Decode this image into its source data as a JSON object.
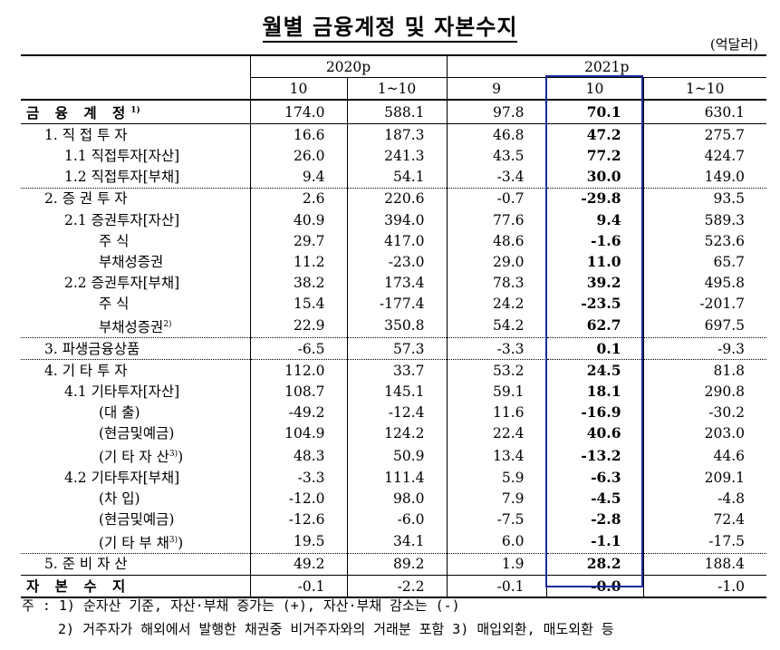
{
  "title": "월별 금융계정 및 자본수지",
  "unit": "(억달러)",
  "columns": {
    "year2020": "2020p",
    "year2021": "2021p",
    "c1": "10",
    "c2": "1~10",
    "c3": "9",
    "c4": "10",
    "c5": "1~10"
  },
  "rows": [
    {
      "label": "금 융 계 정",
      "sup": "1)",
      "vals": [
        "174.0",
        "588.1",
        "97.8",
        "70.1",
        "630.1"
      ]
    },
    {
      "label": "1. 직 접 투 자",
      "vals": [
        "16.6",
        "187.3",
        "46.8",
        "47.2",
        "275.7"
      ]
    },
    {
      "label": "1.1 직접투자[자산]",
      "vals": [
        "26.0",
        "241.3",
        "43.5",
        "77.2",
        "424.7"
      ]
    },
    {
      "label": "1.2 직접투자[부채]",
      "vals": [
        "9.4",
        "54.1",
        "-3.4",
        "30.0",
        "149.0"
      ]
    },
    {
      "label": "2. 증 권 투 자",
      "vals": [
        "2.6",
        "220.6",
        "-0.7",
        "-29.8",
        "93.5"
      ]
    },
    {
      "label": "2.1 증권투자[자산]",
      "vals": [
        "40.9",
        "394.0",
        "77.6",
        "9.4",
        "589.3"
      ]
    },
    {
      "label": "주 식",
      "vals": [
        "29.7",
        "417.0",
        "48.6",
        "-1.6",
        "523.6"
      ]
    },
    {
      "label": "부채성증권",
      "vals": [
        "11.2",
        "-23.0",
        "29.0",
        "11.0",
        "65.7"
      ]
    },
    {
      "label": "2.2 증권투자[부채]",
      "vals": [
        "38.2",
        "173.4",
        "78.3",
        "39.2",
        "495.8"
      ]
    },
    {
      "label": "주 식",
      "vals": [
        "15.4",
        "-177.4",
        "24.2",
        "-23.5",
        "-201.7"
      ]
    },
    {
      "label": "부채성증권",
      "sup": "2)",
      "vals": [
        "22.9",
        "350.8",
        "54.2",
        "62.7",
        "697.5"
      ]
    },
    {
      "label": "3. 파생금융상품",
      "vals": [
        "-6.5",
        "57.3",
        "-3.3",
        "0.1",
        "-9.3"
      ]
    },
    {
      "label": "4. 기 타 투 자",
      "vals": [
        "112.0",
        "33.7",
        "53.2",
        "24.5",
        "81.8"
      ]
    },
    {
      "label": "4.1 기타투자[자산]",
      "vals": [
        "108.7",
        "145.1",
        "59.1",
        "18.1",
        "290.8"
      ]
    },
    {
      "label": "(대 출)",
      "vals": [
        "-49.2",
        "-12.4",
        "11.6",
        "-16.9",
        "-30.2"
      ]
    },
    {
      "label": "(현금및예금)",
      "vals": [
        "104.9",
        "124.2",
        "22.4",
        "40.6",
        "203.0"
      ]
    },
    {
      "label": "(기 타 자 산",
      "sup": "3)",
      "close": ")",
      "vals": [
        "48.3",
        "50.9",
        "13.4",
        "-13.2",
        "44.6"
      ]
    },
    {
      "label": "4.2 기타투자[부채]",
      "vals": [
        "-3.3",
        "111.4",
        "5.9",
        "-6.3",
        "209.1"
      ]
    },
    {
      "label": "(차 입)",
      "vals": [
        "-12.0",
        "98.0",
        "7.9",
        "-4.5",
        "-4.8"
      ]
    },
    {
      "label": "(현금및예금)",
      "vals": [
        "-12.6",
        "-6.0",
        "-7.5",
        "-2.8",
        "72.4"
      ]
    },
    {
      "label": "(기 타 부 채",
      "sup": "3)",
      "close": ")",
      "vals": [
        "19.5",
        "34.1",
        "6.0",
        "-1.1",
        "-17.5"
      ]
    },
    {
      "label": "5. 준 비 자 산",
      "vals": [
        "49.2",
        "89.2",
        "1.9",
        "28.2",
        "188.4"
      ]
    },
    {
      "label": "자 본 수 지",
      "vals": [
        "-0.1",
        "-2.2",
        "-0.1",
        "-0.0",
        "-1.0"
      ]
    }
  ],
  "notes": {
    "line1": "주 : 1) 순자산 기준, 자산·부채 증가는 (+), 자산·부채 감소는 (-)",
    "line2": "2) 거주자가 해외에서 발행한 채권중 비거주자와의 거래분 포함  3) 매입외환, 매도외환 등"
  }
}
